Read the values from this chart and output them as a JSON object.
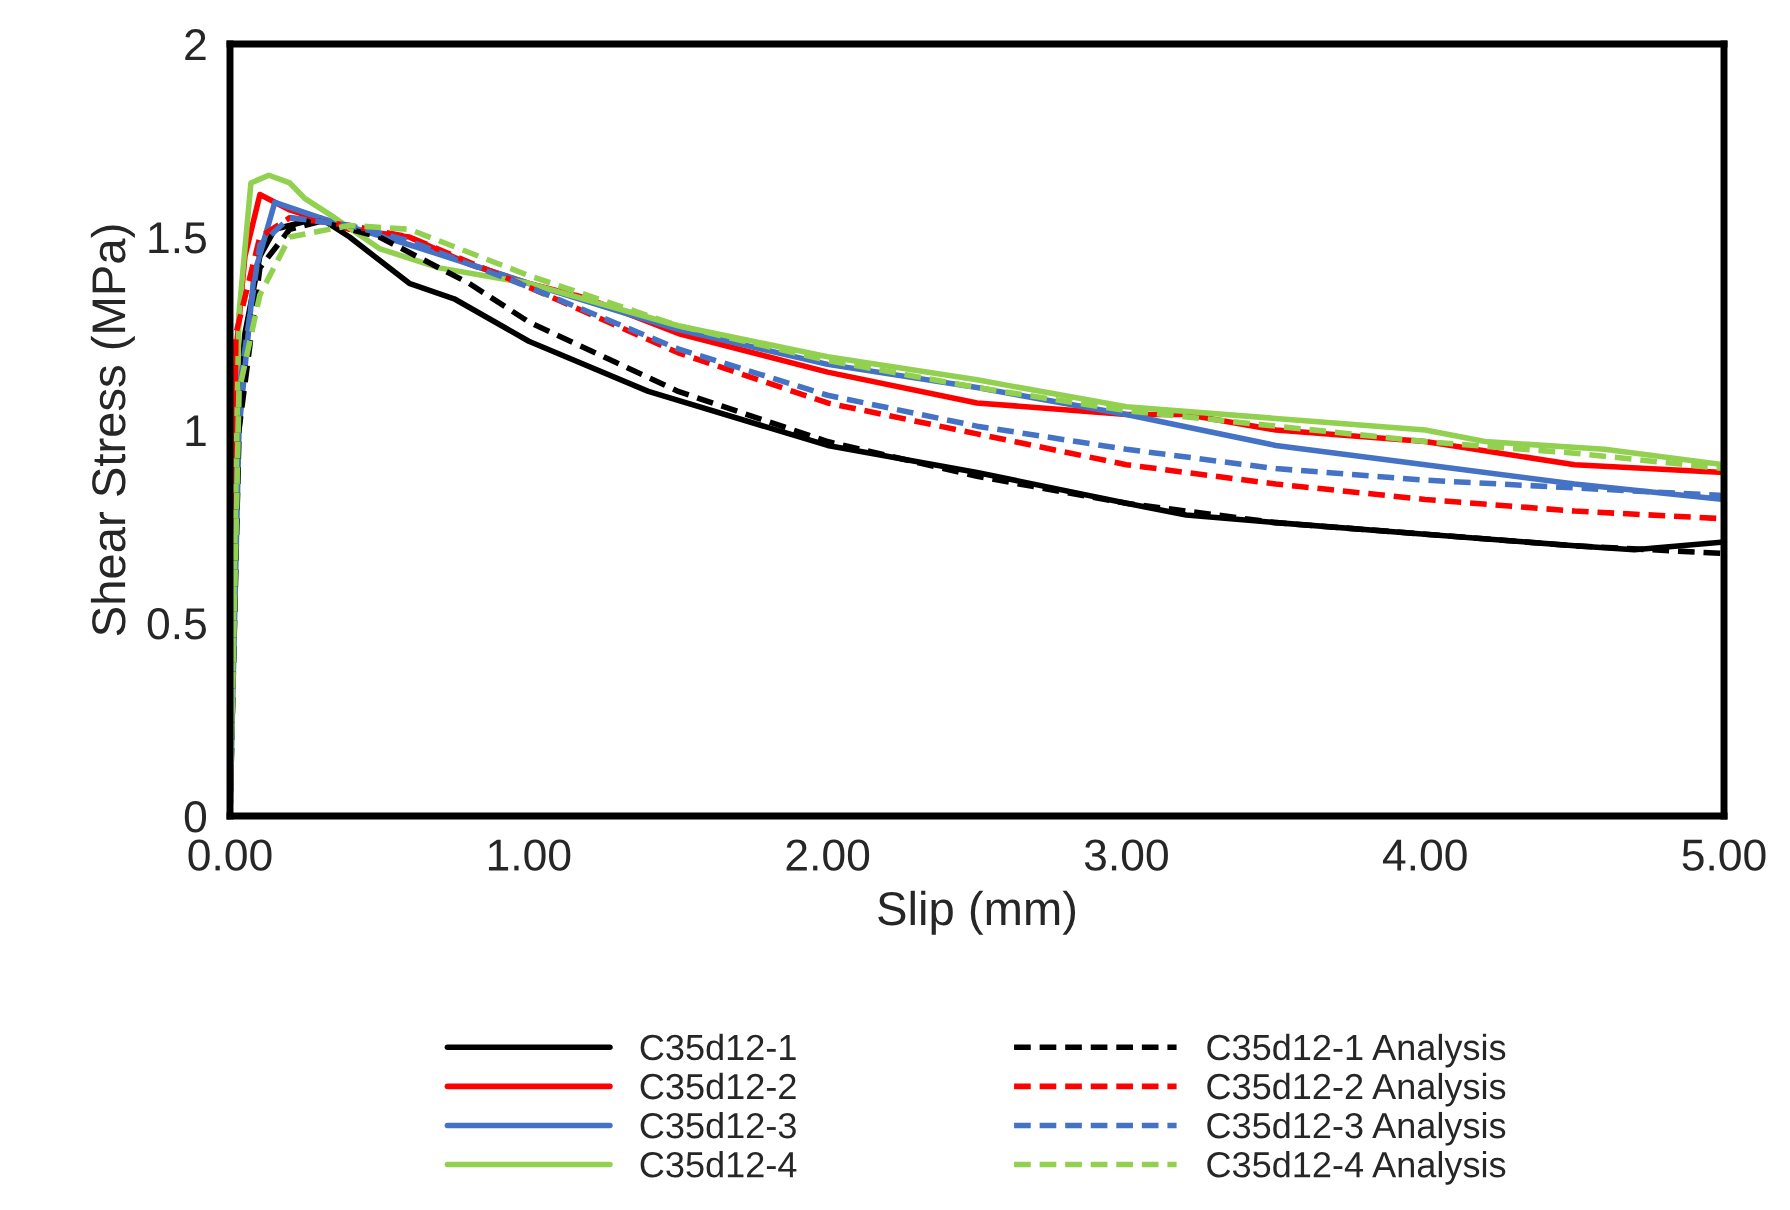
{
  "chart_data": {
    "type": "line",
    "xlabel": "Slip (mm)",
    "ylabel": "Shear Stress (MPa)",
    "xlim": [
      0,
      5
    ],
    "xticks": [
      {
        "value": 0,
        "label": "0.00"
      },
      {
        "value": 1,
        "label": "1.00"
      },
      {
        "value": 2,
        "label": "2.00"
      },
      {
        "value": 3,
        "label": "3.00"
      },
      {
        "value": 4,
        "label": "4.00"
      },
      {
        "value": 5,
        "label": "5.00"
      }
    ],
    "ylim": [
      0,
      2
    ],
    "yticks": [
      0,
      0.5,
      1,
      1.5,
      2
    ],
    "grid": false,
    "legend": "bottom",
    "marker": "none",
    "series": [
      {
        "name": "C35d12-1",
        "color": "#000000",
        "line_style": "solid",
        "x": [
          0,
          0.02,
          0.05,
          0.1,
          0.15,
          0.3,
          0.4,
          0.6,
          0.75,
          1.0,
          1.4,
          2.0,
          2.5,
          3.0,
          3.2,
          3.5,
          4.0,
          4.5,
          4.7,
          5.0
        ],
        "values": [
          0,
          1.0,
          1.25,
          1.45,
          1.52,
          1.55,
          1.5,
          1.38,
          1.34,
          1.23,
          1.1,
          0.96,
          0.89,
          0.81,
          0.78,
          0.76,
          0.73,
          0.7,
          0.69,
          0.71
        ]
      },
      {
        "name": "C35d12-2",
        "color": "#ff0000",
        "line_style": "solid",
        "x": [
          0,
          0.02,
          0.05,
          0.1,
          0.2,
          0.4,
          0.6,
          0.8,
          1.0,
          1.2,
          1.5,
          2.0,
          2.5,
          3.0,
          3.2,
          3.5,
          4.0,
          4.5,
          5.0
        ],
        "values": [
          0,
          1.2,
          1.45,
          1.61,
          1.57,
          1.52,
          1.5,
          1.43,
          1.38,
          1.34,
          1.25,
          1.15,
          1.07,
          1.04,
          1.04,
          1.0,
          0.97,
          0.91,
          0.89
        ]
      },
      {
        "name": "C35d12-3",
        "color": "#4472c4",
        "line_style": "solid",
        "x": [
          0,
          0.03,
          0.08,
          0.15,
          0.3,
          0.6,
          1.0,
          1.5,
          2.0,
          2.5,
          3.0,
          3.5,
          4.0,
          4.5,
          5.0
        ],
        "values": [
          0,
          1.0,
          1.4,
          1.59,
          1.55,
          1.48,
          1.38,
          1.26,
          1.17,
          1.11,
          1.04,
          0.96,
          0.91,
          0.86,
          0.82
        ]
      },
      {
        "name": "C35d12-4",
        "color": "#92d050",
        "line_style": "solid",
        "x": [
          0,
          0.03,
          0.07,
          0.13,
          0.2,
          0.25,
          0.35,
          0.5,
          0.7,
          1.0,
          1.5,
          2.0,
          2.5,
          3.0,
          3.5,
          4.0,
          4.2,
          4.6,
          5.0
        ],
        "values": [
          0,
          1.3,
          1.64,
          1.66,
          1.64,
          1.6,
          1.55,
          1.47,
          1.42,
          1.38,
          1.27,
          1.19,
          1.13,
          1.06,
          1.03,
          1.0,
          0.97,
          0.95,
          0.91
        ]
      },
      {
        "name": "C35d12-1 Analysis",
        "color": "#000000",
        "line_style": "dashed",
        "x": [
          0,
          0.03,
          0.1,
          0.2,
          0.3,
          0.5,
          0.8,
          1.0,
          1.5,
          2.0,
          2.5,
          3.0,
          3.5,
          4.0,
          4.5,
          5.0
        ],
        "values": [
          0,
          1.0,
          1.42,
          1.52,
          1.54,
          1.5,
          1.38,
          1.28,
          1.1,
          0.97,
          0.88,
          0.81,
          0.76,
          0.73,
          0.7,
          0.68
        ]
      },
      {
        "name": "C35d12-2 Analysis",
        "color": "#ff0000",
        "line_style": "dashed",
        "x": [
          0,
          0.02,
          0.1,
          0.2,
          0.4,
          0.6,
          1.0,
          1.5,
          2.0,
          2.5,
          3.0,
          3.5,
          4.0,
          4.5,
          5.0
        ],
        "values": [
          0,
          1.25,
          1.5,
          1.55,
          1.53,
          1.5,
          1.37,
          1.2,
          1.07,
          0.99,
          0.91,
          0.86,
          0.82,
          0.79,
          0.77
        ]
      },
      {
        "name": "C35d12-3 Analysis",
        "color": "#4472c4",
        "line_style": "dashed",
        "x": [
          0,
          0.03,
          0.1,
          0.2,
          0.4,
          0.6,
          1.0,
          1.5,
          2.0,
          2.5,
          3.0,
          3.5,
          4.0,
          4.5,
          5.0
        ],
        "values": [
          0,
          1.1,
          1.48,
          1.55,
          1.53,
          1.49,
          1.37,
          1.21,
          1.09,
          1.01,
          0.95,
          0.9,
          0.87,
          0.85,
          0.83
        ]
      },
      {
        "name": "C35d12-4 Analysis",
        "color": "#92d050",
        "line_style": "dashed",
        "x": [
          0,
          0.03,
          0.1,
          0.2,
          0.4,
          0.6,
          1.0,
          1.5,
          2.0,
          2.5,
          3.0,
          3.5,
          4.0,
          4.5,
          5.0
        ],
        "values": [
          0,
          1.1,
          1.35,
          1.5,
          1.53,
          1.52,
          1.4,
          1.27,
          1.18,
          1.11,
          1.05,
          1.01,
          0.97,
          0.94,
          0.9
        ]
      }
    ]
  }
}
